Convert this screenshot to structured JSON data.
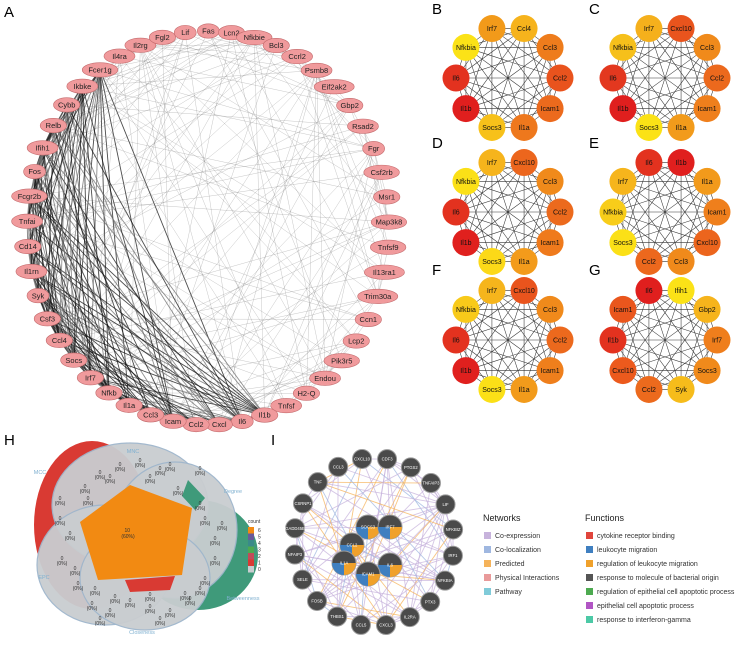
{
  "panels": {
    "A": "A",
    "B": "B",
    "C": "C",
    "D": "D",
    "E": "E",
    "F": "F",
    "G": "G",
    "H": "H",
    "I": "I"
  },
  "panelA": {
    "nodes": [
      "Fcer1g",
      "Il4ra",
      "Il2rg",
      "Fgl2",
      "Lif",
      "Fas",
      "Lcn2",
      "Nfkbie",
      "Bcl3",
      "Ccrl2",
      "Psmb8",
      "Eif2ak2",
      "Gbp2",
      "Rsad2",
      "Fgr",
      "Csf2rb",
      "Msr1",
      "Map3k8",
      "Tnfsf9",
      "Il13ra1",
      "Trim30a",
      "Ccn1",
      "Lcp2",
      "Pik3r5",
      "Endou",
      "H2-Q",
      "Tnfsf",
      "Il1b",
      "Il6",
      "Cxcl",
      "Ccl2",
      "Icam",
      "Ccl3",
      "Il1a",
      "Nfkb",
      "Irf7",
      "Socs",
      "Ccl4",
      "Csf3",
      "Syk",
      "Il1rn",
      "Cd14",
      "Tnfai",
      "Fcgr2b",
      "Fos",
      "Ifih1",
      "Relb",
      "Cybb",
      "Ikbke"
    ],
    "highlight": [
      "Il1b",
      "Il6",
      "Cxcl",
      "Ccl2",
      "Icam",
      "Ccl3",
      "Il1a",
      "Nfkb",
      "Irf7",
      "Socs",
      "Ccl4",
      "Csf3",
      "Syk",
      "Il1rn",
      "Cd14",
      "Tnfai",
      "Fcgr2b",
      "Fos",
      "Ifih1",
      "Relb",
      "Cybb",
      "Ikbke",
      "Fcer1g"
    ]
  },
  "hubPanels": [
    {
      "key": "B",
      "nodes": [
        {
          "label": "Irf7",
          "color": "#f29a1a"
        },
        {
          "label": "Ccl4",
          "color": "#f6b31c"
        },
        {
          "label": "Ccl3",
          "color": "#ee7c1c"
        },
        {
          "label": "Ccl2",
          "color": "#e9531d"
        },
        {
          "label": "Icam1",
          "color": "#ec6a1d"
        },
        {
          "label": "Il1a",
          "color": "#ee781d"
        },
        {
          "label": "Socs3",
          "color": "#f7c11a"
        },
        {
          "label": "Il1b",
          "color": "#e01f1e"
        },
        {
          "label": "Il6",
          "color": "#e3321f"
        },
        {
          "label": "Nfkbia",
          "color": "#fbe217"
        }
      ]
    },
    {
      "key": "C",
      "nodes": [
        {
          "label": "Irf7",
          "color": "#f5b01c"
        },
        {
          "label": "Cxcl10",
          "color": "#e9541d"
        },
        {
          "label": "Ccl3",
          "color": "#f08a1b"
        },
        {
          "label": "Ccl2",
          "color": "#ec691d"
        },
        {
          "label": "Icam1",
          "color": "#ef7f1c"
        },
        {
          "label": "Il1a",
          "color": "#f29b1b"
        },
        {
          "label": "Socs3",
          "color": "#fbe216"
        },
        {
          "label": "Il1b",
          "color": "#e01f1e"
        },
        {
          "label": "Il6",
          "color": "#e3381f"
        },
        {
          "label": "Nfkbia",
          "color": "#f6c01b"
        }
      ]
    },
    {
      "key": "D",
      "nodes": [
        {
          "label": "Irf7",
          "color": "#f6b41c"
        },
        {
          "label": "Cxcl10",
          "color": "#ec661d"
        },
        {
          "label": "Ccl3",
          "color": "#f08a1b"
        },
        {
          "label": "Ccl2",
          "color": "#ec6a1d"
        },
        {
          "label": "Icam1",
          "color": "#ef7a1c"
        },
        {
          "label": "Il1a",
          "color": "#f39b1b"
        },
        {
          "label": "Socs3",
          "color": "#fcd918"
        },
        {
          "label": "Il1b",
          "color": "#e0201e"
        },
        {
          "label": "Il6",
          "color": "#e3321f"
        },
        {
          "label": "Nfkbia",
          "color": "#fbe017"
        }
      ]
    },
    {
      "key": "E",
      "nodes": [
        {
          "label": "Il6",
          "color": "#e3321f"
        },
        {
          "label": "Il1b",
          "color": "#e01f1e"
        },
        {
          "label": "Il1a",
          "color": "#f29a1b"
        },
        {
          "label": "Icam1",
          "color": "#ef7f1c"
        },
        {
          "label": "Cxcl10",
          "color": "#ec651d"
        },
        {
          "label": "Ccl3",
          "color": "#f08a1b"
        },
        {
          "label": "Ccl2",
          "color": "#ec681d"
        },
        {
          "label": "Socs3",
          "color": "#fbe017"
        },
        {
          "label": "Nfkbia",
          "color": "#f8cd1a"
        },
        {
          "label": "Irf7",
          "color": "#f6b51c"
        }
      ]
    },
    {
      "key": "F",
      "nodes": [
        {
          "label": "Irf7",
          "color": "#f6b51c"
        },
        {
          "label": "Cxcl10",
          "color": "#e9541d"
        },
        {
          "label": "Ccl3",
          "color": "#f08a1b"
        },
        {
          "label": "Ccl2",
          "color": "#ec691d"
        },
        {
          "label": "Icam1",
          "color": "#ef7f1c"
        },
        {
          "label": "Il1a",
          "color": "#f29b1b"
        },
        {
          "label": "Socs3",
          "color": "#fbe017"
        },
        {
          "label": "Il1b",
          "color": "#e0201e"
        },
        {
          "label": "Il6",
          "color": "#e3321f"
        },
        {
          "label": "Nfkbia",
          "color": "#f8ca1a"
        }
      ]
    },
    {
      "key": "G",
      "nodes": [
        {
          "label": "Il6",
          "color": "#e01f1e"
        },
        {
          "label": "Ifih1",
          "color": "#fbe217"
        },
        {
          "label": "Gbp2",
          "color": "#f6b41c"
        },
        {
          "label": "Irf7",
          "color": "#ef7e1c"
        },
        {
          "label": "Socs3",
          "color": "#f08a1b"
        },
        {
          "label": "Syk",
          "color": "#f6bc1b"
        },
        {
          "label": "Ccl2",
          "color": "#ec6a1d"
        },
        {
          "label": "Cxcl10",
          "color": "#ec5a1d"
        },
        {
          "label": "Il1b",
          "color": "#e3321f"
        },
        {
          "label": "Icam1",
          "color": "#e9561d"
        }
      ]
    }
  ],
  "panelH": {
    "sets": [
      "MNC",
      "Degree",
      "Betweenness",
      "Closeness",
      "EPC",
      "MCC"
    ],
    "center_label": "10\n(60%)",
    "legend_title": "count",
    "legend_ticks": [
      "6",
      "5",
      "4",
      "3",
      "2",
      "1",
      "0"
    ]
  },
  "panelI": {
    "outer_nodes": [
      "CXCL10",
      "CDF3",
      "PTGS2",
      "TNFAIP3",
      "LIF",
      "NFKBIZ",
      "IRF1",
      "NFKBIA",
      "PTX3",
      "IL2RA",
      "CXCL3",
      "CCL5",
      "THBS1",
      "FOSB",
      "SELE",
      "NFAIP3",
      "GADD45B",
      "CSRNP1",
      "TNF",
      "CCL3"
    ],
    "inner_nodes": [
      "SOCS3",
      "IRF7",
      "CCL2",
      "IL1A",
      "IL6",
      "ICAM1"
    ],
    "networks_title": "Networks",
    "networks": [
      {
        "label": "Co-expression",
        "color": "#c7b3dc"
      },
      {
        "label": "Co-localization",
        "color": "#9fb7e0"
      },
      {
        "label": "Predicted",
        "color": "#f5b35a"
      },
      {
        "label": "Physical Interactions",
        "color": "#e99a9a"
      },
      {
        "label": "Pathway",
        "color": "#80cbd9"
      }
    ],
    "functions_title": "Functions",
    "functions": [
      {
        "label": "cytokine receptor binding",
        "color": "#e0453c"
      },
      {
        "label": "leukocyte migration",
        "color": "#3f7fc0"
      },
      {
        "label": "regulation of leukocyte migration",
        "color": "#f0a12b"
      },
      {
        "label": "response to molecule of bacterial origin",
        "color": "#555555"
      },
      {
        "label": "regulation of epithelial cell apoptotic process",
        "color": "#4daa50"
      },
      {
        "label": "epithelial cell apoptotic process",
        "color": "#b155c4"
      },
      {
        "label": "response to interferon-gamma",
        "color": "#4cc9a6"
      }
    ]
  },
  "colors": {
    "nodeA": "#f09a9c",
    "nodeAStroke": "#c46b6d",
    "gray": "#555555",
    "vennGray": "#c9cdd0",
    "vennOrange": "#f28a12",
    "vennRed": "#d93a33",
    "vennGreen": "#3f9a7a"
  }
}
